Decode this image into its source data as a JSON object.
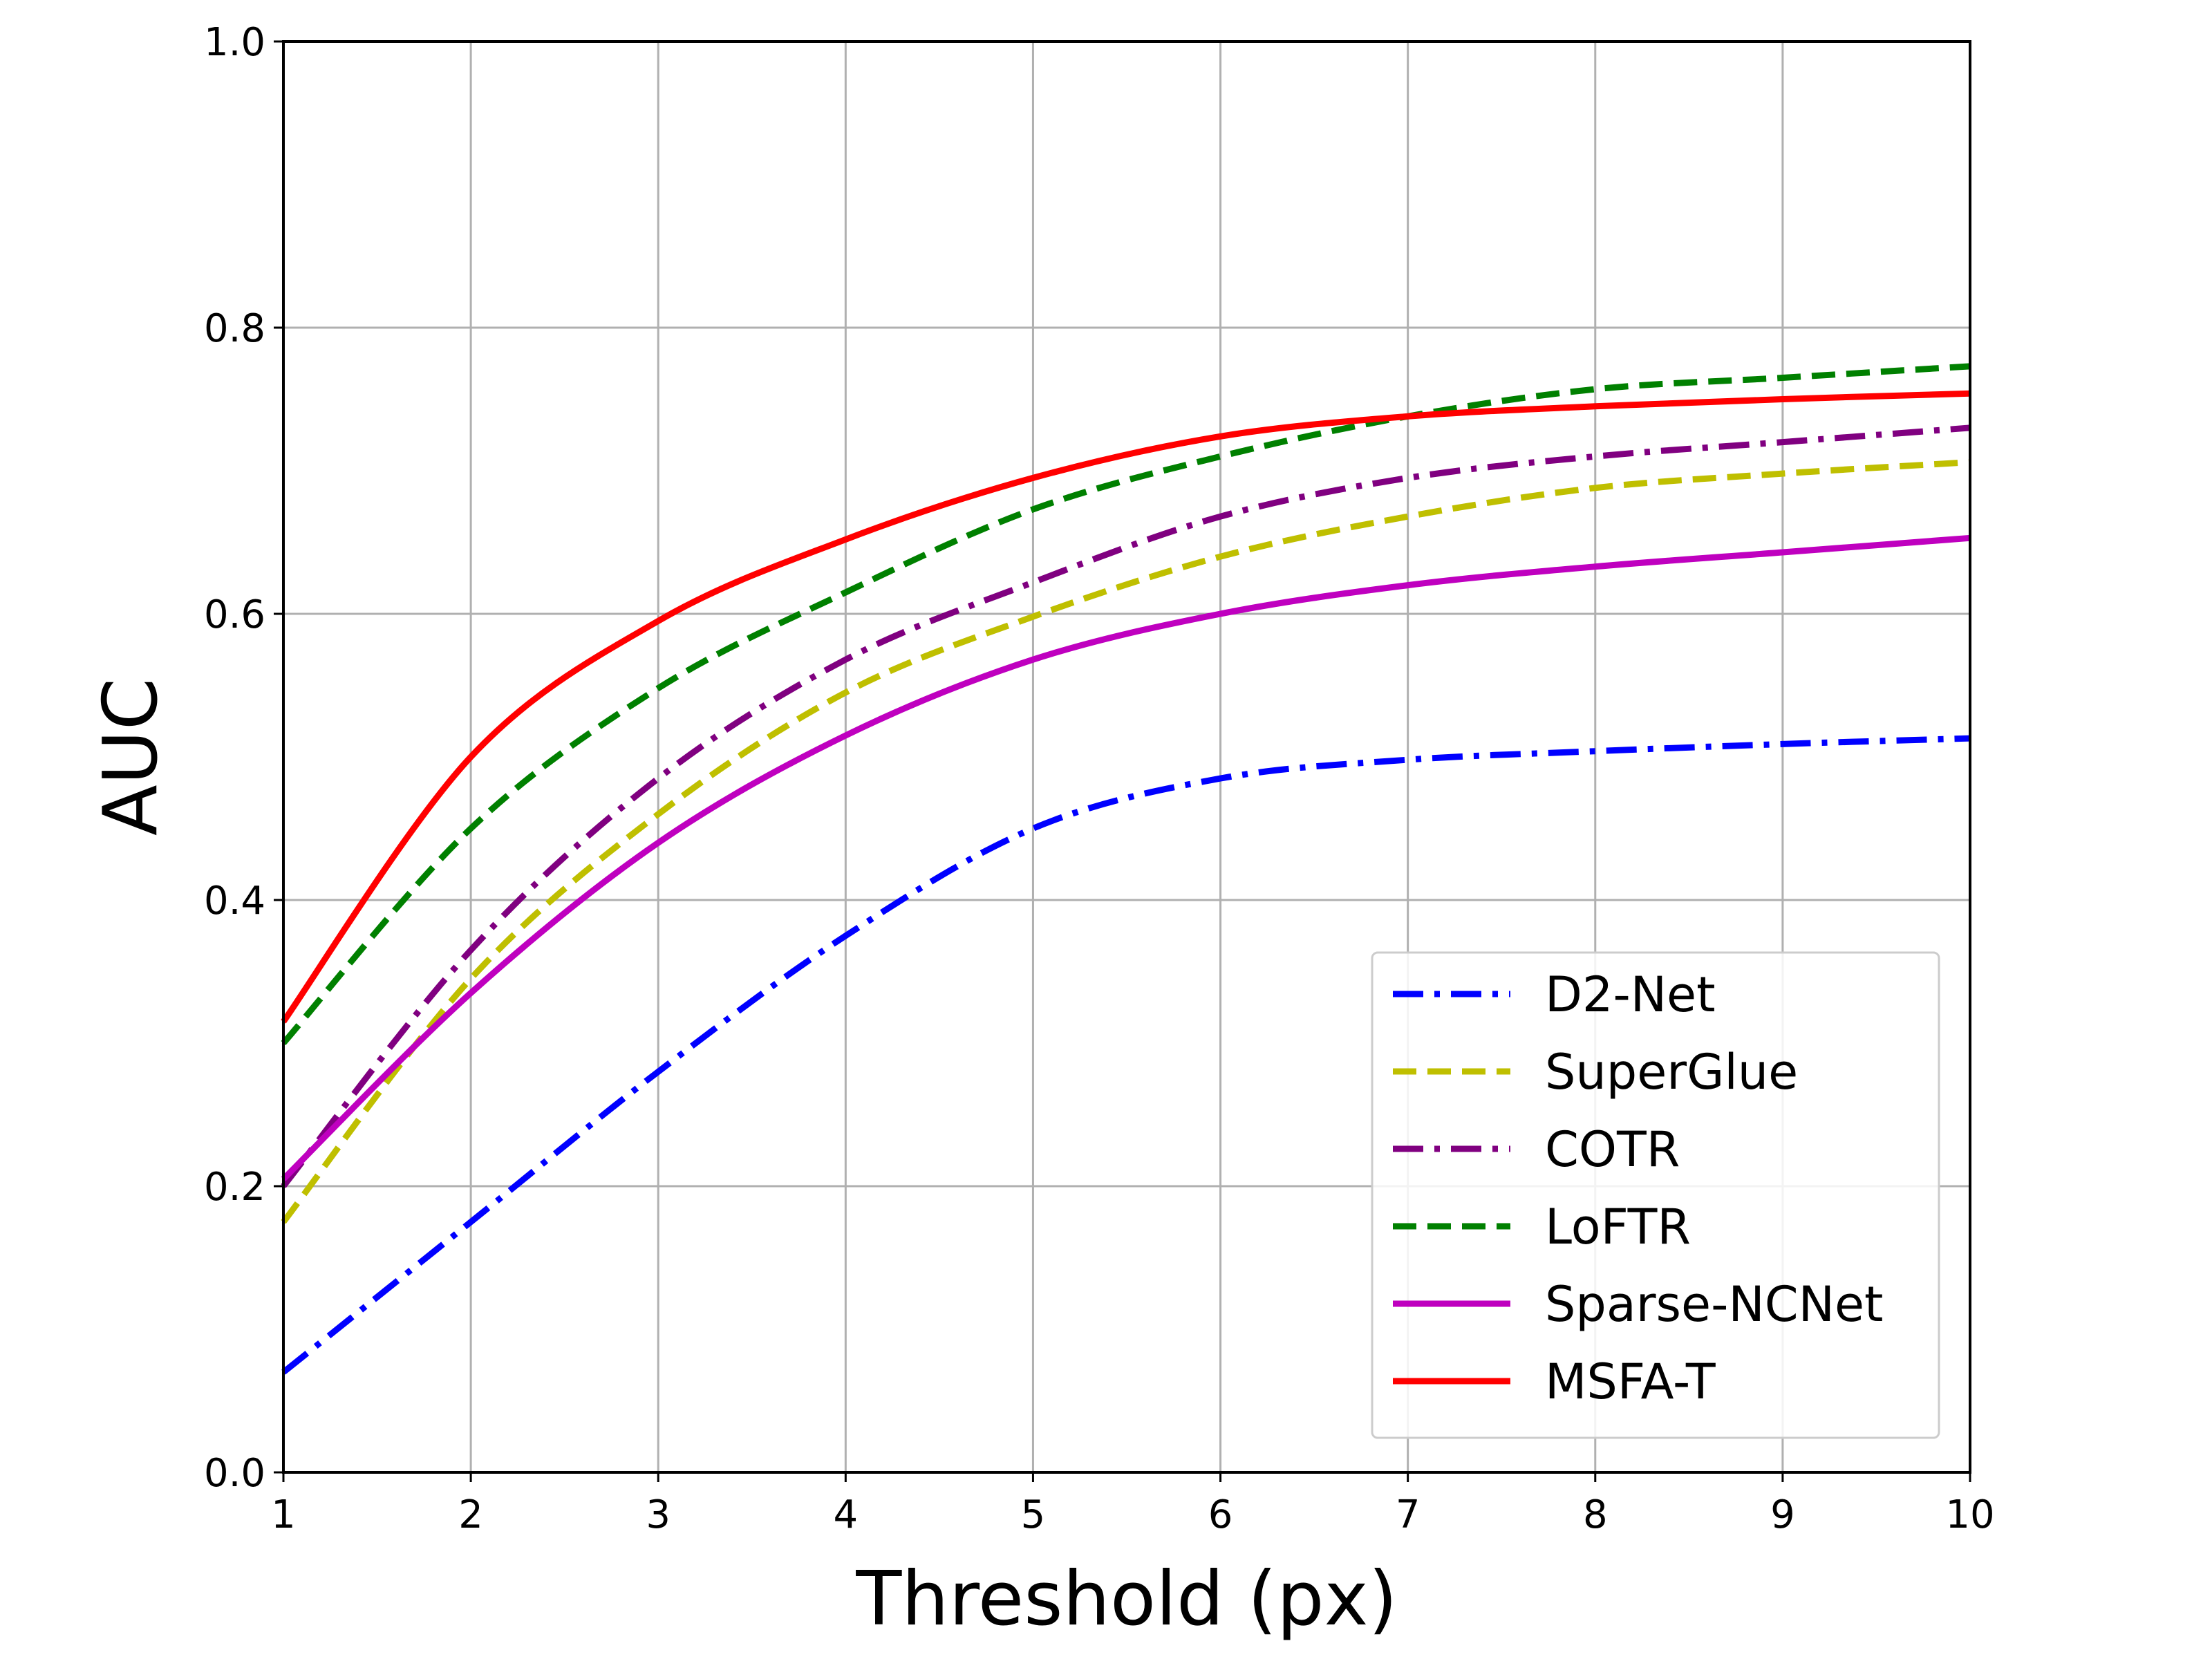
{
  "chart_data": {
    "type": "line",
    "title": "",
    "xlabel": "Threshold (px)",
    "ylabel": "AUC",
    "xlim": [
      1,
      10
    ],
    "ylim": [
      0,
      1
    ],
    "xticks": [
      "1",
      "2",
      "3",
      "4",
      "5",
      "6",
      "7",
      "8",
      "9",
      "10"
    ],
    "yticks": [
      "0.0",
      "0.2",
      "0.4",
      "0.6",
      "0.8",
      "1.0"
    ],
    "grid": true,
    "legend_position": "lower-right",
    "x": [
      1,
      2,
      3,
      4,
      5,
      6,
      7,
      8,
      9,
      10
    ],
    "series": [
      {
        "name": "D2-Net",
        "color": "#0000ff",
        "dash": "dashdot",
        "values": [
          0.07,
          0.175,
          0.28,
          0.375,
          0.45,
          0.485,
          0.498,
          0.504,
          0.509,
          0.513
        ]
      },
      {
        "name": "SuperGlue",
        "color": "#bfbf00",
        "dash": "dashed",
        "values": [
          0.175,
          0.345,
          0.46,
          0.545,
          0.598,
          0.64,
          0.668,
          0.688,
          0.698,
          0.706
        ]
      },
      {
        "name": "COTR",
        "color": "#800080",
        "dash": "dashdot",
        "values": [
          0.2,
          0.365,
          0.485,
          0.568,
          0.622,
          0.668,
          0.695,
          0.71,
          0.72,
          0.73
        ]
      },
      {
        "name": "LoFTR",
        "color": "#008000",
        "dash": "dashed",
        "values": [
          0.3,
          0.45,
          0.548,
          0.615,
          0.673,
          0.71,
          0.738,
          0.757,
          0.765,
          0.773
        ]
      },
      {
        "name": "Sparse-NCNet",
        "color": "#bf00bf",
        "dash": "solid",
        "values": [
          0.205,
          0.335,
          0.44,
          0.515,
          0.568,
          0.6,
          0.62,
          0.633,
          0.643,
          0.653
        ]
      },
      {
        "name": "MSFA-T",
        "color": "#ff0000",
        "dash": "solid",
        "values": [
          0.315,
          0.5,
          0.595,
          0.652,
          0.695,
          0.724,
          0.738,
          0.745,
          0.75,
          0.754
        ]
      }
    ]
  }
}
